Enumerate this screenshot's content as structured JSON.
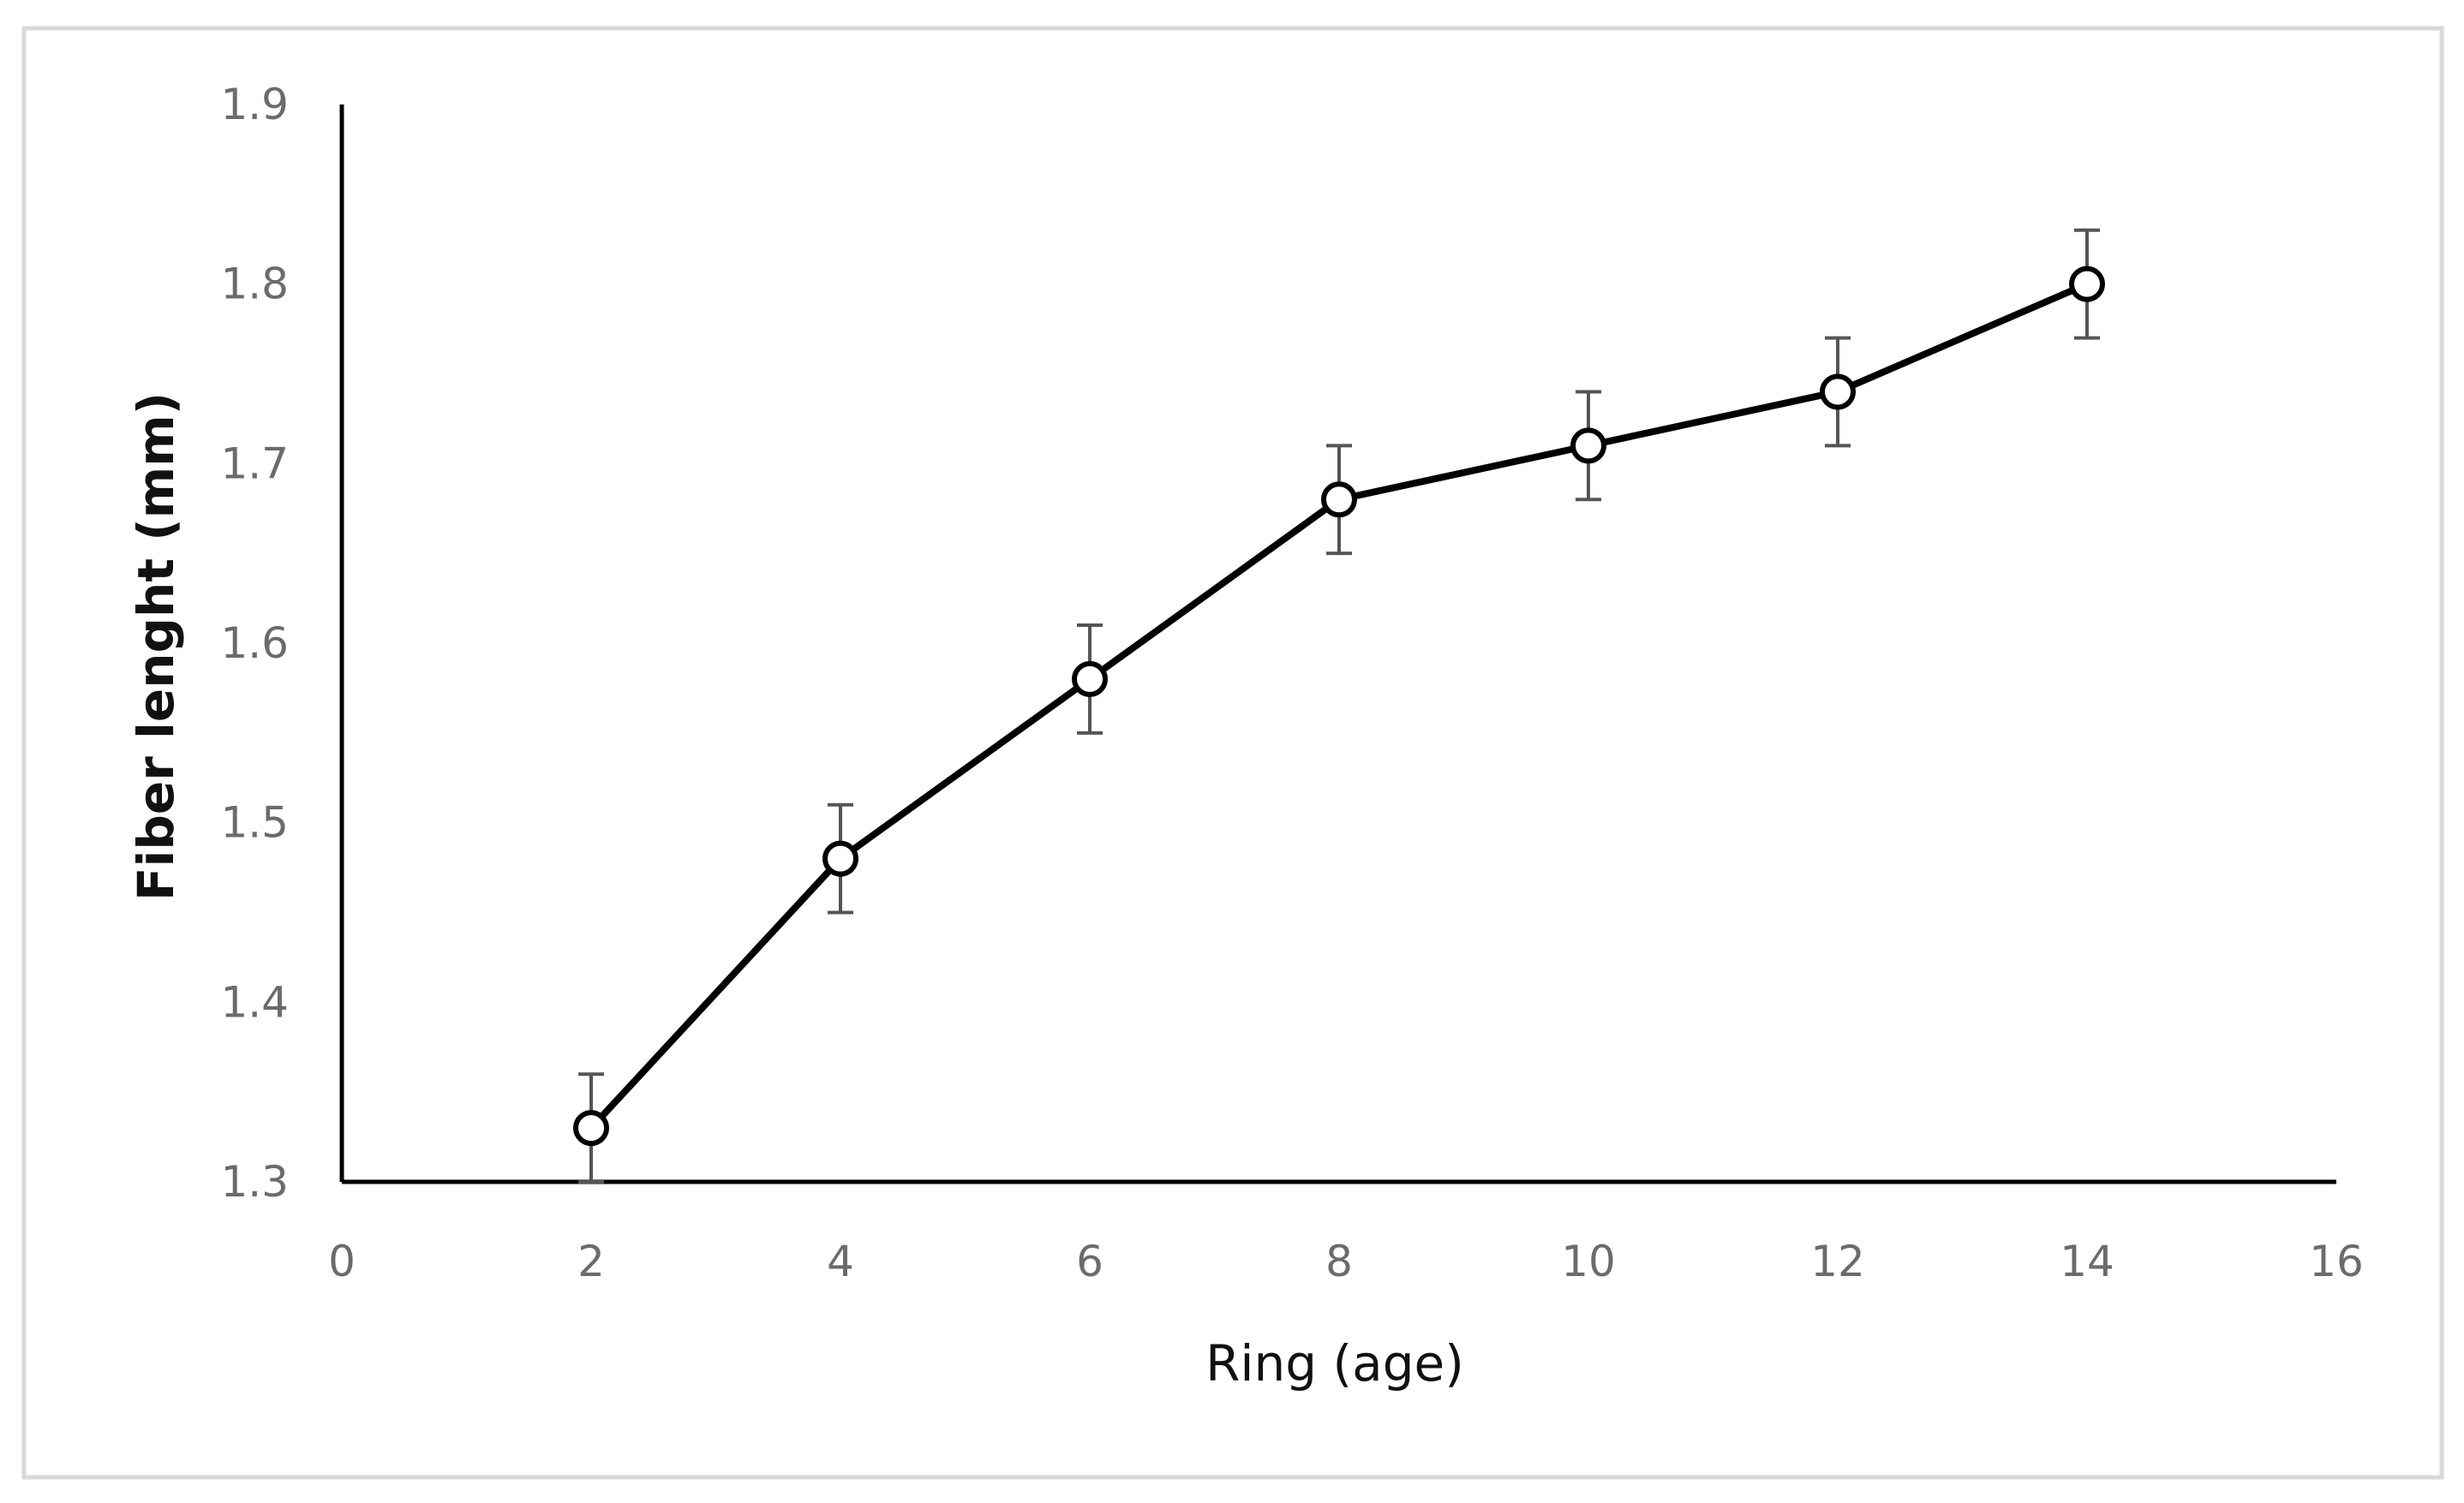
{
  "chart_data": {
    "type": "line",
    "title": "",
    "xlabel": "Ring (age)",
    "ylabel": "Fiber lenght (mm)",
    "xlim": [
      0,
      16
    ],
    "ylim": [
      1.3,
      1.9
    ],
    "x_ticks": [
      0,
      2,
      4,
      6,
      8,
      10,
      12,
      14,
      16
    ],
    "y_ticks": [
      1.3,
      1.4,
      1.5,
      1.6,
      1.7,
      1.8,
      1.9
    ],
    "x_tick_labels": [
      "0",
      "2",
      "4",
      "6",
      "8",
      "10",
      "12",
      "14",
      "16"
    ],
    "y_tick_labels": [
      "1.3",
      "1.4",
      "1.5",
      "1.6",
      "1.7",
      "1.8",
      "1.9"
    ],
    "grid": false,
    "legend": "none",
    "series": [
      {
        "x": [
          2,
          4,
          6,
          8,
          10,
          12,
          14
        ],
        "y": [
          1.33,
          1.48,
          1.58,
          1.68,
          1.71,
          1.74,
          1.8
        ],
        "error": [
          0.03,
          0.03,
          0.03,
          0.03,
          0.03,
          0.03,
          0.03
        ],
        "marker": "open-circle",
        "line_color": "#000000",
        "marker_fill": "#ffffff",
        "error_bar_color": "#555555"
      }
    ],
    "colors": {
      "frame_border": "#d9d9d9",
      "axis_line": "#000000",
      "tick_label": "#6b6b6b",
      "axis_title": "#111111"
    }
  }
}
